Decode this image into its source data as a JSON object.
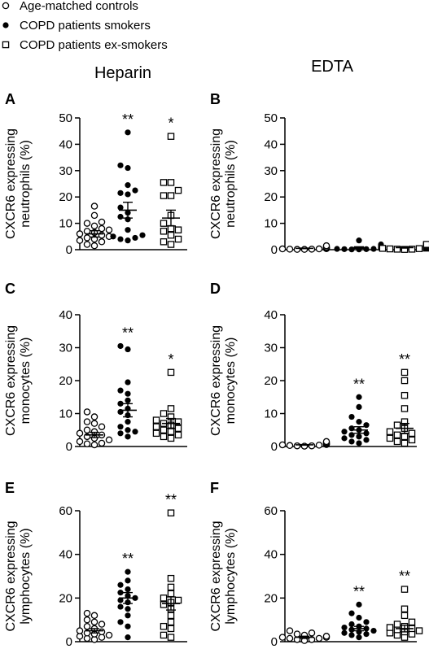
{
  "legend": [
    {
      "label": "Age-matched controls",
      "marker": "open-circle"
    },
    {
      "label": "COPD patients smokers",
      "marker": "filled-circle"
    },
    {
      "label": "COPD patients ex-smokers",
      "marker": "open-square"
    }
  ],
  "column_titles": [
    "Heparin",
    "EDTA"
  ],
  "chart_data": [
    {
      "type": "scatter",
      "panel": "A",
      "column": "Heparin",
      "ylabel": [
        "CXCR6 expressing",
        "neutrophils (%)"
      ],
      "ylim": [
        0,
        50
      ],
      "yticks": [
        0,
        10,
        20,
        30,
        40,
        50
      ],
      "series": [
        {
          "name": "Age-matched controls",
          "marker": "open-circle",
          "mean": 6,
          "sem": 1.2,
          "significance": "",
          "values": [
            16.5,
            13,
            10.5,
            10,
            9,
            8,
            7.5,
            7,
            6.5,
            6,
            5.5,
            5,
            4.5,
            4,
            3.5,
            3,
            2,
            1.5
          ]
        },
        {
          "name": "COPD patients smokers",
          "marker": "filled-circle",
          "mean": 15,
          "sem": 3,
          "significance": "**",
          "values": [
            44.5,
            32,
            31,
            24.5,
            22.5,
            21.5,
            21,
            16,
            14,
            12.5,
            11.5,
            7.5,
            5.5,
            5,
            4.5,
            4,
            3.5
          ]
        },
        {
          "name": "COPD patients ex-smokers",
          "marker": "open-square",
          "mean": 12,
          "sem": 3,
          "significance": "*",
          "values": [
            43,
            25.5,
            25.5,
            22.5,
            20.5,
            20.5,
            13,
            10,
            8,
            7.5,
            7,
            5.5,
            4,
            3,
            2
          ]
        }
      ]
    },
    {
      "type": "scatter",
      "panel": "B",
      "column": "EDTA",
      "ylabel": [
        "CXCR6 expressing",
        "neutrophils (%)"
      ],
      "ylim": [
        0,
        50
      ],
      "yticks": [
        0,
        10,
        20,
        30,
        40,
        50
      ],
      "series": [
        {
          "name": "Age-matched controls",
          "marker": "open-circle",
          "mean": 0.5,
          "sem": 0.1,
          "significance": "",
          "values": [
            1.5,
            1,
            1,
            0.8,
            0.7,
            0.5,
            0.5,
            0.4,
            0.3,
            0.3,
            0.2,
            0.2,
            0.1,
            0.1
          ]
        },
        {
          "name": "COPD patients smokers",
          "marker": "filled-circle",
          "mean": 0.8,
          "sem": 0.3,
          "significance": "",
          "values": [
            3.5,
            2,
            1.5,
            1,
            0.8,
            0.6,
            0.5,
            0.4,
            0.3,
            0.3,
            0.2,
            0.2,
            0.1,
            0.1
          ]
        },
        {
          "name": "COPD patients ex-smokers",
          "marker": "open-square",
          "mean": 0.8,
          "sem": 0.2,
          "significance": "",
          "values": [
            2,
            1.8,
            1.5,
            1.2,
            1,
            0.8,
            0.6,
            0.5,
            0.4,
            0.3,
            0.2,
            0.2,
            0.1
          ]
        }
      ]
    },
    {
      "type": "scatter",
      "panel": "C",
      "column": "Heparin",
      "ylabel": [
        "CXCR6 expressing",
        "monocytes (%)"
      ],
      "ylim": [
        0,
        40
      ],
      "yticks": [
        0,
        10,
        20,
        30,
        40
      ],
      "series": [
        {
          "name": "Age-matched controls",
          "marker": "open-circle",
          "mean": 3.5,
          "sem": 0.8,
          "significance": "",
          "values": [
            10.5,
            9,
            7.5,
            7,
            6,
            5,
            4.5,
            4,
            3.5,
            3,
            2.5,
            2,
            1.5,
            1,
            0.8,
            0.5
          ]
        },
        {
          "name": "COPD patients smokers",
          "marker": "filled-circle",
          "mean": 11,
          "sem": 2,
          "significance": "**",
          "values": [
            30.5,
            29.5,
            19.5,
            17,
            16,
            14,
            13,
            11.5,
            10.5,
            9.5,
            7.5,
            6,
            5,
            4.5,
            4,
            3
          ]
        },
        {
          "name": "COPD patients ex-smokers",
          "marker": "open-square",
          "mean": 7,
          "sem": 1.5,
          "significance": "*",
          "values": [
            22.5,
            11.5,
            10,
            9,
            8,
            7.5,
            7,
            6.5,
            6,
            5.5,
            5,
            4.5,
            4,
            3.5,
            3,
            2.5
          ]
        }
      ]
    },
    {
      "type": "scatter",
      "panel": "D",
      "column": "EDTA",
      "ylabel": [
        "CXCR6 expressing",
        "monocytes (%)"
      ],
      "ylim": [
        0,
        40
      ],
      "yticks": [
        0,
        10,
        20,
        30,
        40
      ],
      "series": [
        {
          "name": "Age-matched controls",
          "marker": "open-circle",
          "mean": 0.5,
          "sem": 0.1,
          "significance": "",
          "values": [
            1.5,
            1.2,
            1,
            0.8,
            0.7,
            0.6,
            0.5,
            0.4,
            0.3,
            0.2,
            0.2,
            0.1
          ]
        },
        {
          "name": "COPD patients smokers",
          "marker": "filled-circle",
          "mean": 5,
          "sem": 1,
          "significance": "**",
          "values": [
            15,
            12,
            9,
            7.5,
            6.5,
            5.5,
            5,
            4.5,
            4,
            3.5,
            3,
            2.5,
            2,
            1.5,
            1
          ]
        },
        {
          "name": "COPD patients ex-smokers",
          "marker": "open-square",
          "mean": 5.5,
          "sem": 1.5,
          "significance": "**",
          "values": [
            22.5,
            20,
            15.5,
            11.5,
            7.5,
            6.5,
            5.5,
            4.5,
            4,
            3.5,
            3,
            2.5,
            2,
            1.5,
            1
          ]
        }
      ]
    },
    {
      "type": "scatter",
      "panel": "E",
      "column": "Heparin",
      "ylabel": [
        "CXCR6 expressing",
        "lymphocytes (%)"
      ],
      "ylim": [
        0,
        60
      ],
      "yticks": [
        0,
        20,
        40,
        60
      ],
      "series": [
        {
          "name": "Age-matched controls",
          "marker": "open-circle",
          "mean": 5,
          "sem": 1,
          "significance": "",
          "values": [
            13,
            12,
            10,
            9,
            8,
            7,
            6,
            5,
            4.5,
            4,
            3.5,
            3,
            2.5,
            2,
            1.5,
            1
          ]
        },
        {
          "name": "COPD patients smokers",
          "marker": "filled-circle",
          "mean": 20,
          "sem": 2.5,
          "significance": "**",
          "values": [
            32,
            28,
            26,
            24,
            22.5,
            21,
            20,
            19,
            18,
            16,
            15,
            12,
            9,
            7,
            2
          ]
        },
        {
          "name": "COPD patients ex-smokers",
          "marker": "open-square",
          "mean": 17.5,
          "sem": 3,
          "significance": "**",
          "values": [
            59,
            29,
            25,
            22,
            20,
            19,
            18,
            17,
            15,
            12,
            9,
            7,
            6,
            3,
            2
          ]
        }
      ]
    },
    {
      "type": "scatter",
      "panel": "F",
      "column": "EDTA",
      "ylabel": [
        "CXCR6 expressing",
        "lymphocytes (%)"
      ],
      "ylim": [
        0,
        60
      ],
      "yticks": [
        0,
        20,
        40,
        60
      ],
      "series": [
        {
          "name": "Age-matched controls",
          "marker": "open-circle",
          "mean": 2,
          "sem": 0.5,
          "significance": "",
          "values": [
            5,
            4,
            3.5,
            3,
            2.5,
            2,
            2,
            1.5,
            1.5,
            1,
            1,
            0.5
          ]
        },
        {
          "name": "COPD patients smokers",
          "marker": "filled-circle",
          "mean": 6,
          "sem": 1,
          "significance": "**",
          "values": [
            17,
            13,
            11,
            9,
            8,
            7,
            6.5,
            6,
            5.5,
            5,
            4.5,
            4,
            3.5,
            3,
            2
          ]
        },
        {
          "name": "COPD patients ex-smokers",
          "marker": "open-square",
          "mean": 6,
          "sem": 1.5,
          "significance": "**",
          "values": [
            24,
            15,
            12,
            9,
            8,
            7,
            6.5,
            6,
            5.5,
            5,
            4.5,
            4,
            3.5,
            3,
            2
          ]
        }
      ]
    }
  ]
}
